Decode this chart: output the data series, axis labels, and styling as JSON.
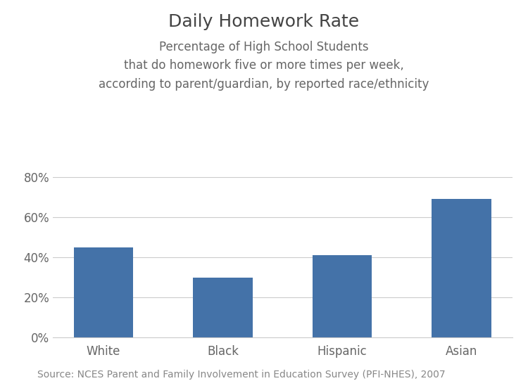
{
  "title": "Daily Homework Rate",
  "subtitle": "Percentage of High School Students\nthat do homework five or more times per week,\naccording to parent/guardian, by reported race/ethnicity",
  "categories": [
    "White",
    "Black",
    "Hispanic",
    "Asian"
  ],
  "values": [
    0.45,
    0.3,
    0.41,
    0.69
  ],
  "bar_color": "#4472a8",
  "ylim": [
    0,
    0.85
  ],
  "yticks": [
    0.0,
    0.2,
    0.4,
    0.6,
    0.8
  ],
  "ytick_labels": [
    "0%",
    "20%",
    "40%",
    "60%",
    "80%"
  ],
  "source_text": "Source: NCES Parent and Family Involvement in Education Survey (PFI-NHES), 2007",
  "background_color": "#ffffff",
  "title_fontsize": 18,
  "subtitle_fontsize": 12,
  "tick_fontsize": 12,
  "source_fontsize": 10,
  "bar_width": 0.5,
  "title_color": "#444444",
  "subtitle_color": "#666666",
  "source_color": "#888888",
  "tick_color": "#666666",
  "grid_color": "#cccccc",
  "spine_color": "#cccccc"
}
